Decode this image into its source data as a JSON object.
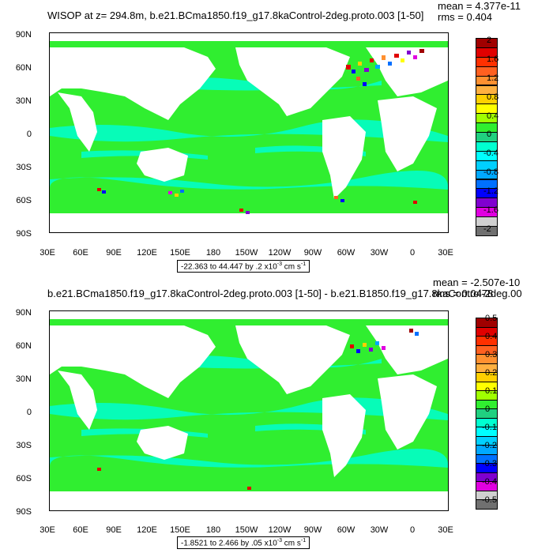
{
  "chart_data": [
    {
      "type": "heatmap",
      "title": "WISOP at z= 294.8m, b.e21.BCma1850.f19_g17.8kaControl-2deg.proto.003 [1-50]",
      "mean_label": "mean = 4.377e-11",
      "rms_label": "rms = 0.404",
      "yticks": [
        "90N",
        "60N",
        "30N",
        "0",
        "30S",
        "60S",
        "90S"
      ],
      "xticks": [
        "30E",
        "60E",
        "90E",
        "120E",
        "150E",
        "180",
        "150W",
        "120W",
        "90W",
        "60W",
        "30W",
        "0",
        "30E"
      ],
      "range_text": "-22.363 to 44.447 by .2",
      "range_exp": "-3",
      "range_units": "cm s",
      "range_units_exp": "-1",
      "colorbar_labels": [
        "2",
        "1.6",
        "1.2",
        "0.8",
        "0.4",
        "0",
        "-0.4",
        "-0.8",
        "-1.2",
        "-1.6",
        "-2"
      ],
      "colorbar_colors": [
        "#a00000",
        "#e00000",
        "#ff3000",
        "#ff6020",
        "#ff9030",
        "#ffb040",
        "#ffd000",
        "#ffff00",
        "#a0ff00",
        "#30ee30",
        "#20d080",
        "#00ffd0",
        "#00ffff",
        "#00d0ff",
        "#00a8ff",
        "#0070ff",
        "#0000ff",
        "#8000d0",
        "#e000e0",
        "#d0d0d0",
        "#707070"
      ]
    },
    {
      "type": "heatmap",
      "title": "b.e21.BCma1850.f19_g17.8kaControl-2deg.proto.003 [1-50] - b.e21.B1850.f19_g17.8kaControl-2deg.00",
      "mean_label": "mean = -2.507e-10",
      "rms_label": "rms = 0.0478",
      "yticks": [
        "90N",
        "60N",
        "30N",
        "0",
        "30S",
        "60S",
        "90S"
      ],
      "xticks": [
        "30E",
        "60E",
        "90E",
        "120E",
        "150E",
        "180",
        "150W",
        "120W",
        "90W",
        "60W",
        "30W",
        "0",
        "30E"
      ],
      "range_text": "-1.8521 to 2.466 by .05",
      "range_exp": "-3",
      "range_units": "cm s",
      "range_units_exp": "-1",
      "colorbar_labels": [
        "0.5",
        "0.4",
        "0.3",
        "0.2",
        "0.1",
        "0",
        "-0.1",
        "-0.2",
        "-0.3",
        "-0.4",
        "-0.5"
      ],
      "colorbar_colors": [
        "#a00000",
        "#e00000",
        "#ff3000",
        "#ff6020",
        "#ff9030",
        "#ffb040",
        "#ffd000",
        "#ffff00",
        "#a0ff00",
        "#30ee30",
        "#20d080",
        "#00ffd0",
        "#00ffff",
        "#00d0ff",
        "#00a8ff",
        "#0070ff",
        "#0000ff",
        "#8000d0",
        "#e000e0",
        "#d0d0d0",
        "#707070"
      ]
    }
  ]
}
